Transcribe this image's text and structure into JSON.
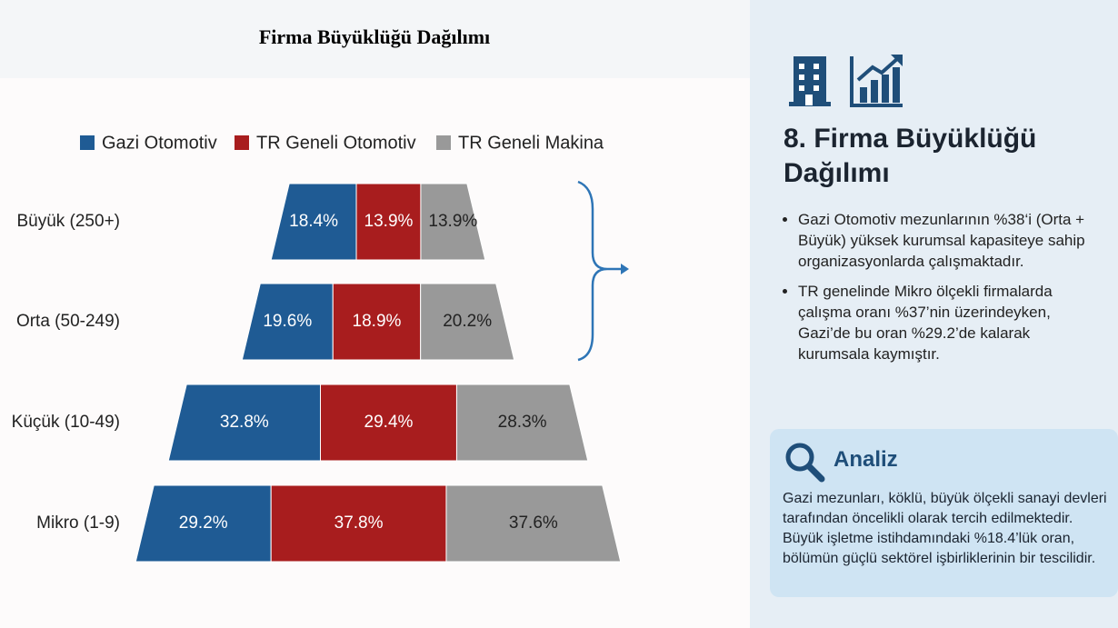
{
  "chart_data": {
    "type": "pyramid",
    "title": "Firma Büyüklüğü Dağılımı",
    "categories": [
      "Büyük (250+)",
      "Orta (50-249)",
      "Küçük (10-49)",
      "Mikro (1-9)"
    ],
    "series": [
      {
        "name": "Gazi Otomotiv",
        "color": "#1f5b94",
        "values": [
          18.4,
          19.6,
          32.8,
          29.2
        ],
        "value_labels": [
          "18.4%",
          "19.6%",
          "32.8%",
          "29.2%"
        ]
      },
      {
        "name": "TR Geneli Otomotiv",
        "color": "#a81d1e",
        "values": [
          13.9,
          18.9,
          29.4,
          37.8
        ],
        "value_labels": [
          "13.9%",
          "18.9%",
          "29.4%",
          "37.8%"
        ]
      },
      {
        "name": "TR Geneli Makina",
        "color": "#999999",
        "values": [
          13.9,
          20.2,
          28.3,
          37.6
        ],
        "value_labels": [
          "13.9%",
          "20.2%",
          "28.3%",
          "37.6%"
        ]
      }
    ]
  },
  "panel": {
    "title": "8. Firma Büyüklüğü Dağılımı",
    "bullets": [
      "Gazi Otomotiv mezunlarının %38‘i (Orta + Büyük) yüksek kurumsal kapasiteye sahip organizasyonlarda çalışmaktadır.",
      "TR genelinde Mikro ölçekli firmalarda çalışma oranı %37’nin üzerindeyken, Gazi’de bu oran %29.2’de kalarak kurumsala kaymıştır."
    ],
    "analysis": {
      "title": "Analiz",
      "text": "Gazi mezunları, köklü, büyük ölçekli sanayi devleri tarafından öncelikli olarak tercih edilmektedir. Büyük işletme istihdamındaki %18.4’lük oran, bölümün güçlü sektörel işbirliklerinin bir tescilidir."
    }
  }
}
